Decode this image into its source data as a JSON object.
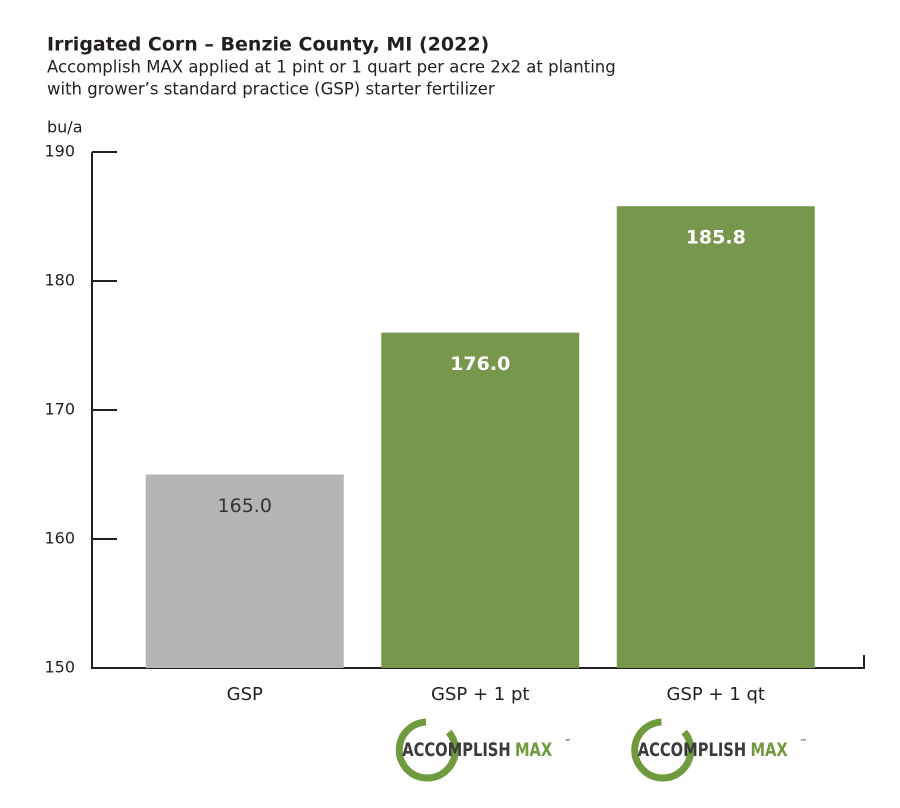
{
  "chart_data": {
    "type": "bar",
    "title": "Irrigated Corn – Benzie County, MI (2022)",
    "subtitle": [
      "Accomplish MAX applied at 1 pint or 1 quart per acre 2x2 at planting",
      "with grower’s standard practice (GSP) starter fertilizer"
    ],
    "ylabel": "bu/a",
    "categories": [
      "GSP",
      "GSP + 1 pt",
      "GSP + 1 qt"
    ],
    "values": [
      165.0,
      176.0,
      185.8
    ],
    "value_labels": [
      "165.0",
      "176.0",
      "185.8"
    ],
    "colors": [
      "#b3b4b6",
      "#77984c",
      "#77984c"
    ],
    "label_colors": [
      "#333333",
      "#ffffff",
      "#ffffff"
    ],
    "category_logos": [
      null,
      {
        "brand": "ACCOMPLISH",
        "product": "MAX",
        "mark": "™"
      },
      {
        "brand": "ACCOMPLISH",
        "product": "MAX",
        "mark": "™"
      }
    ],
    "ylim": [
      150,
      190
    ],
    "yticks": [
      150,
      160,
      170,
      180,
      190
    ],
    "grid": false
  }
}
